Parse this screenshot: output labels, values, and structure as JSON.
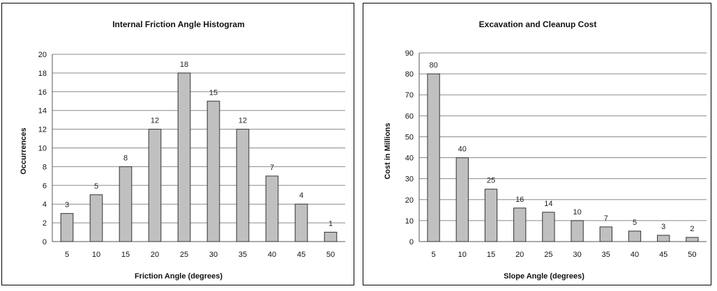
{
  "chart_data": [
    {
      "type": "bar",
      "title": "Internal Friction Angle Histogram",
      "xlabel": "Friction Angle (degrees)",
      "ylabel": "Occurrences",
      "categories": [
        "5",
        "10",
        "15",
        "20",
        "25",
        "30",
        "35",
        "40",
        "45",
        "50"
      ],
      "values": [
        3,
        5,
        8,
        12,
        18,
        15,
        12,
        7,
        4,
        1
      ],
      "ylim": [
        0,
        20
      ],
      "yticks": [
        0,
        2,
        4,
        6,
        8,
        10,
        12,
        14,
        16,
        18,
        20
      ],
      "grid": true,
      "bar_color": "#c0c0c0",
      "legend": "none"
    },
    {
      "type": "bar",
      "title": "Excavation and Cleanup Cost",
      "xlabel": "Slope Angle (degrees)",
      "ylabel": "Cost in Millions",
      "categories": [
        "5",
        "10",
        "15",
        "20",
        "25",
        "30",
        "35",
        "40",
        "45",
        "50"
      ],
      "values": [
        80,
        40,
        25,
        16,
        14,
        10,
        7,
        5,
        3,
        2
      ],
      "ylim": [
        0,
        90
      ],
      "yticks": [
        0,
        10,
        20,
        30,
        40,
        50,
        60,
        70,
        80,
        90
      ],
      "grid": true,
      "bar_color": "#c0c0c0",
      "legend": "none"
    }
  ]
}
